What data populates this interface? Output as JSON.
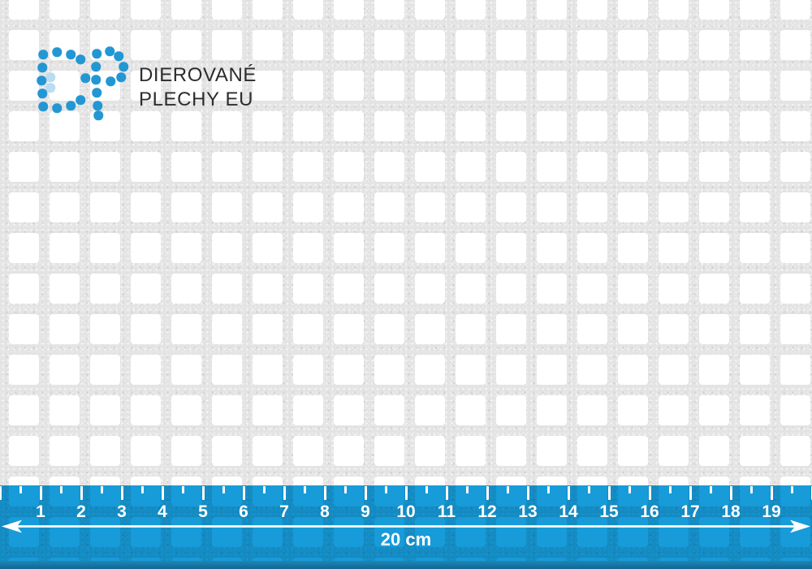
{
  "brand": {
    "name_line1": "DIEROVANÉ",
    "name_line2": "PLECHY EU",
    "text_color": "#2d2d2d",
    "dot_color": "#2397d4",
    "dot_color_light": "#b9ddf1",
    "logo_mark": "DP",
    "logo_dots": {
      "d": [
        [
          53,
          67
        ],
        [
          70,
          64
        ],
        [
          87,
          67
        ],
        [
          52,
          83
        ],
        [
          51,
          99
        ],
        [
          52,
          115
        ],
        [
          53,
          131
        ],
        [
          70,
          133
        ],
        [
          87,
          130
        ],
        [
          99,
          73
        ],
        [
          105,
          96
        ],
        [
          99,
          123
        ]
      ],
      "p": [
        [
          119,
          66
        ],
        [
          135,
          63
        ],
        [
          146,
          69
        ],
        [
          152,
          82
        ],
        [
          149,
          95
        ],
        [
          136,
          100
        ],
        [
          118,
          82
        ],
        [
          118,
          98
        ],
        [
          119,
          114
        ],
        [
          120,
          130
        ],
        [
          121,
          142
        ]
      ],
      "light": [
        [
          62,
          95
        ],
        [
          62,
          108
        ]
      ],
      "diameter": 11.5
    }
  },
  "sheet": {
    "metal_color": "#e3e3e3",
    "hole_color": "#ffffff"
  },
  "ruler": {
    "numbers": [
      "1",
      "2",
      "3",
      "4",
      "5",
      "6",
      "7",
      "8",
      "9",
      "10",
      "11",
      "12",
      "13",
      "14",
      "15",
      "16",
      "17",
      "18",
      "19"
    ],
    "total_label": "20 cm",
    "band_color": "#179bd9",
    "edge_color_top": "#1f86b4",
    "edge_color_bottom": "#0e6694",
    "mark_color": "#ffffff"
  }
}
